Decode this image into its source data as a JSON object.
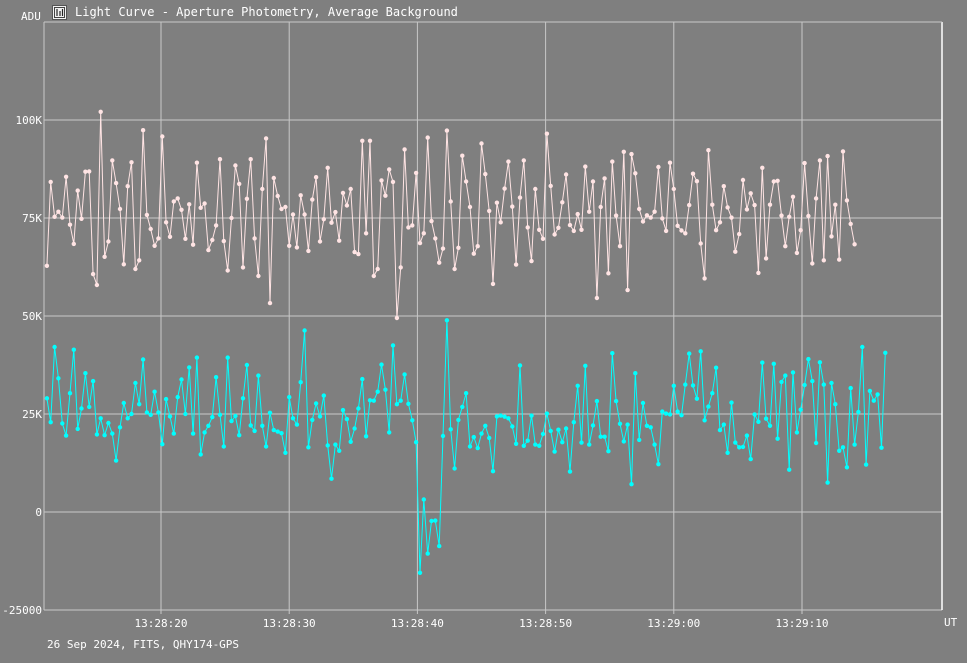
{
  "header": {
    "title": "Light Curve - Aperture Photometry, Average Background",
    "icon": "light-curve-app-icon"
  },
  "footer": {
    "text": "26 Sep 2024, FITS, QHY174-GPS"
  },
  "colors": {
    "background": "#7f7f7f",
    "grid": "#c8c8c8",
    "series_top": "#ffe4e4",
    "series_bottom": "#00ffff"
  },
  "chart_data": {
    "type": "line",
    "ylabel": "ADU",
    "xlabel": "UT",
    "ylim": [
      -25000,
      125000
    ],
    "xlim_seconds": [
      13.34,
      13.89
    ],
    "grid": true,
    "x_tick_labels": [
      "13:28:20",
      "13:28:30",
      "13:28:40",
      "13:28:50",
      "13:29:00",
      "13:29:10"
    ],
    "y_tick_labels": [
      "100K",
      "75K",
      "50K",
      "25K",
      "0",
      "-25000"
    ],
    "y_tick_values": [
      100000,
      75000,
      50000,
      25000,
      0,
      -25000
    ],
    "x_tick_times": [
      "13:28:20",
      "13:28:30",
      "13:28:40",
      "13:28:50",
      "13:29:00",
      "13:29:10"
    ],
    "series": [
      {
        "color": "#ffe4e4",
        "t_start": "13:28:11.1",
        "t_step_s": 0.3,
        "values": [
          62800,
          84200,
          75300,
          76600,
          75100,
          85500,
          73300,
          68400,
          82000,
          74800,
          86800,
          86900,
          60700,
          57900,
          102100,
          65100,
          69000,
          89700,
          83900,
          77300,
          63200,
          83100,
          89200,
          62000,
          64200,
          97400,
          75800,
          72200,
          67900,
          69800,
          95800,
          73900,
          70200,
          79200,
          80000,
          77100,
          69700,
          78500,
          68200,
          89100,
          77600,
          78700,
          66800,
          69400,
          73100,
          90000,
          69100,
          61600,
          75000,
          88400,
          83700,
          62400,
          79900,
          90000,
          69800,
          60200,
          82400,
          95300,
          53300,
          85200,
          80600,
          77300,
          77800,
          67900,
          75900,
          67500,
          80800,
          75900,
          66600,
          79700,
          85400,
          69000,
          74700,
          87800,
          73800,
          76500,
          69200,
          81400,
          78200,
          82400,
          66300,
          65800,
          94700,
          71100,
          94700,
          60200,
          62000,
          84600,
          80700,
          87400,
          84200,
          49500,
          62400,
          92500,
          72600,
          73100,
          86500,
          68600,
          71100,
          95500,
          74200,
          69800,
          63600,
          67200,
          97300,
          79200,
          62000,
          67400,
          90900,
          84300,
          77800,
          65900,
          67800,
          94000,
          86200,
          76800,
          58200,
          78900,
          73900,
          82500,
          89400,
          77900,
          63100,
          80200,
          89700,
          72600,
          64000,
          82400,
          72000,
          69700,
          96500,
          83200,
          70800,
          72500,
          79000,
          86100,
          73200,
          71700,
          76000,
          72000,
          88100,
          76600,
          84300,
          54600,
          77800,
          85100,
          60900,
          89400,
          75600,
          67800,
          91900,
          56600,
          91300,
          86400,
          77300,
          74100,
          75700,
          75100,
          76600,
          88000,
          74900,
          71700,
          89100,
          82400,
          73000,
          71800,
          71100,
          78300,
          86300,
          84400,
          68500,
          59600,
          92300,
          78400,
          71900,
          73900,
          83100,
          77700,
          75100,
          66400,
          70900,
          84700,
          77200,
          81300,
          78300,
          61000,
          87800,
          64700,
          78400,
          84300,
          84500,
          75600,
          67800,
          75300,
          80400,
          66100,
          71900,
          89000,
          75500,
          63400,
          80000,
          89700,
          64200,
          90800,
          70300,
          78400,
          64400,
          92000,
          79500,
          73500,
          68300
        ]
      },
      {
        "color": "#00ffff",
        "t_start": "13:28:11.1",
        "t_step_s": 0.3,
        "values": [
          29000,
          22900,
          42100,
          34100,
          22600,
          19500,
          30300,
          41400,
          21200,
          26400,
          35400,
          26800,
          33400,
          19800,
          23900,
          19600,
          22700,
          20000,
          13100,
          21600,
          27800,
          23900,
          25000,
          32900,
          27500,
          38900,
          25400,
          24800,
          30700,
          25400,
          17300,
          28800,
          24400,
          20000,
          29300,
          33800,
          25000,
          36900,
          20000,
          39400,
          14700,
          20300,
          22000,
          24200,
          34400,
          24800,
          16700,
          39400,
          23200,
          24500,
          19600,
          29000,
          37500,
          22100,
          20700,
          34800,
          22000,
          16700,
          25300,
          20900,
          20500,
          20100,
          15100,
          29300,
          23900,
          22300,
          33100,
          46300,
          16500,
          23500,
          27700,
          24400,
          29700,
          17000,
          8500,
          17200,
          15600,
          26000,
          23700,
          17900,
          21300,
          26400,
          33900,
          19300,
          28500,
          28400,
          30700,
          37600,
          31200,
          20300,
          42500,
          27500,
          28400,
          35100,
          27600,
          23400,
          17800,
          -15500,
          3200,
          -10600,
          -2300,
          -2200,
          -8700,
          19400,
          48900,
          21100,
          11100,
          23500,
          26800,
          30300,
          16700,
          19100,
          16300,
          20000,
          22000,
          18900,
          10400,
          24400,
          24600,
          24300,
          23900,
          21800,
          17400,
          37400,
          16900,
          18200,
          24600,
          17200,
          16900,
          19900,
          25100,
          20700,
          15400,
          21000,
          17800,
          21300,
          10300,
          22900,
          32200,
          17700,
          37300,
          17200,
          22100,
          28300,
          19200,
          19200,
          15500,
          40500,
          28300,
          22500,
          18000,
          22300,
          7100,
          35400,
          18400,
          27800,
          22000,
          21600,
          17200,
          12200,
          25600,
          25100,
          24900,
          32200,
          25600,
          24700,
          32500,
          40400,
          32300,
          28900,
          41000,
          23400,
          26900,
          30300,
          36800,
          20900,
          22300,
          15100,
          27900,
          17700,
          16500,
          16600,
          19500,
          13500,
          24900,
          23000,
          38100,
          23800,
          22000,
          37800,
          18700,
          33200,
          34800,
          10800,
          35600,
          20300,
          26100,
          32400,
          39000,
          33400,
          17600,
          38200,
          32500,
          7500,
          32900,
          27500,
          15600,
          16500,
          11400,
          31600,
          17200,
          25500,
          42100,
          12100,
          30900,
          28400,
          30000,
          16400,
          40600
        ]
      }
    ]
  }
}
